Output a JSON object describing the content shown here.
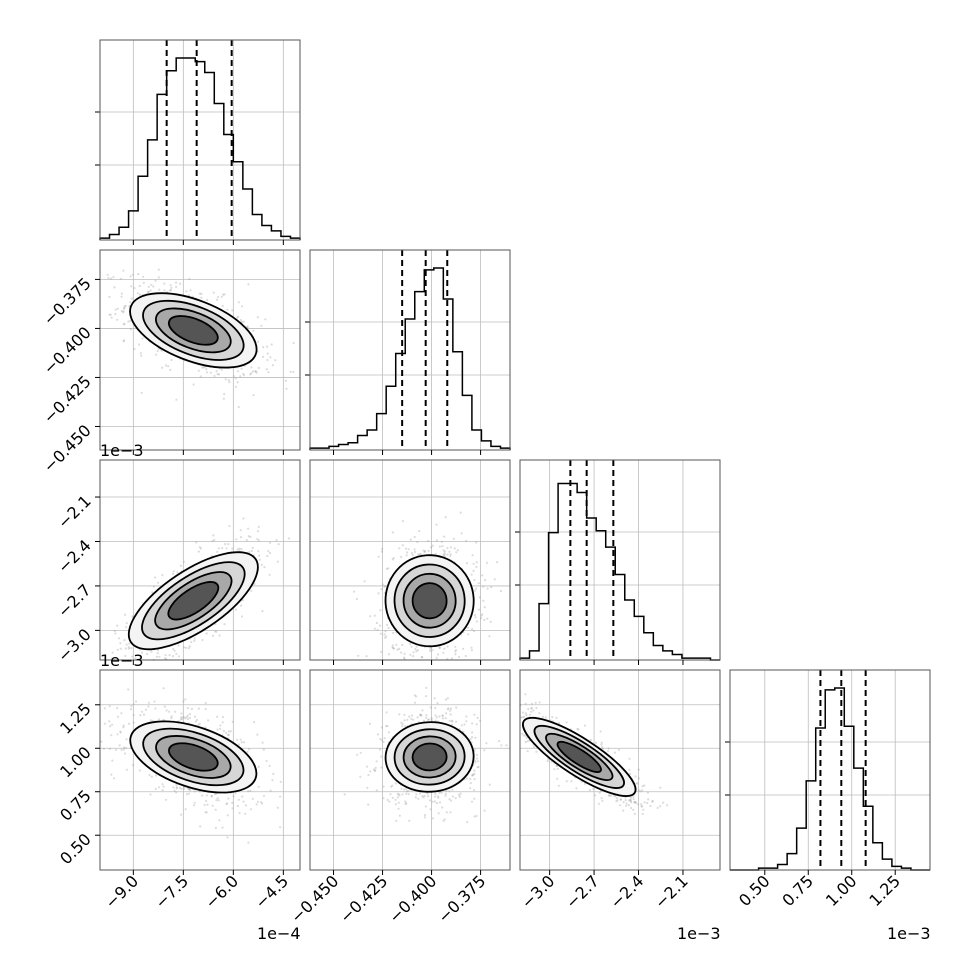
{
  "chart_data": {
    "type": "corner",
    "grid": true,
    "parameters": [
      {
        "range": [
          -10.0,
          -4.0
        ],
        "ticks": [
          -9.0,
          -7.5,
          -6.0,
          -4.5
        ],
        "tick_labels": [
          "−9.0",
          "−7.5",
          "−6.0",
          "−4.5"
        ],
        "offset_text": "1e−4",
        "quantiles": [
          -8.0,
          -7.1,
          -6.05
        ],
        "contour_center": [
          -7.3
        ],
        "spread": 1.0
      },
      {
        "range": [
          -0.462,
          -0.36
        ],
        "ticks": [
          -0.45,
          -0.425,
          -0.4,
          -0.375
        ],
        "tick_labels": [
          "−0.450",
          "−0.425",
          "−0.400",
          "−0.375"
        ],
        "offset_text": "1e−3",
        "quantiles": [
          -0.415,
          -0.403,
          -0.392
        ],
        "spread": 0.012
      },
      {
        "range": [
          -3.2,
          -1.85
        ],
        "ticks": [
          -3.0,
          -2.7,
          -2.4,
          -2.1
        ],
        "tick_labels": [
          "−3.0",
          "−2.7",
          "−2.4",
          "−2.1"
        ],
        "offset_text": "1e−3",
        "quantiles": [
          -2.86,
          -2.75,
          -2.57
        ],
        "spread": 0.2
      },
      {
        "range": [
          0.3,
          1.45
        ],
        "ticks": [
          0.5,
          0.75,
          1.0,
          1.25
        ],
        "tick_labels": [
          "0.50",
          "0.75",
          "1.00",
          "1.25"
        ],
        "offset_text": "1e−3",
        "quantiles": [
          0.82,
          0.94,
          1.08
        ],
        "spread": 0.13
      }
    ],
    "histograms": [
      [
        0.01,
        0.03,
        0.07,
        0.16,
        0.35,
        0.55,
        0.8,
        0.93,
        1.0,
        1.0,
        0.98,
        0.92,
        0.75,
        0.58,
        0.43,
        0.28,
        0.14,
        0.08,
        0.05,
        0.02,
        0.01
      ],
      [
        0.01,
        0.01,
        0.02,
        0.03,
        0.04,
        0.08,
        0.11,
        0.2,
        0.35,
        0.53,
        0.72,
        0.87,
        0.99,
        1.0,
        0.83,
        0.54,
        0.3,
        0.11,
        0.05,
        0.02,
        0.01
      ],
      [
        0.01,
        0.05,
        0.31,
        0.7,
        0.97,
        0.97,
        0.92,
        0.78,
        0.71,
        0.62,
        0.47,
        0.33,
        0.24,
        0.15,
        0.08,
        0.05,
        0.03,
        0.01,
        0.01,
        0.01,
        0.0
      ],
      [
        0.0,
        0.0,
        0.0,
        0.01,
        0.01,
        0.03,
        0.09,
        0.23,
        0.49,
        0.78,
        0.99,
        1.0,
        0.79,
        0.56,
        0.35,
        0.15,
        0.06,
        0.02,
        0.01,
        0.0,
        0.0
      ]
    ],
    "correlations": [
      [
        1,
        -0.55,
        0.75,
        -0.5
      ],
      [
        -0.55,
        1,
        0.05,
        0.05
      ],
      [
        0.75,
        0.05,
        1,
        -0.85
      ],
      [
        -0.5,
        0.05,
        -0.85,
        1
      ]
    ],
    "centers": [
      -7.2,
      -0.401,
      -2.8,
      0.95
    ],
    "contour_levels": [
      0.5,
      1.0,
      1.5,
      2.0
    ],
    "histogram_color": "#000000",
    "scatter_color": "#9a9a9a"
  }
}
